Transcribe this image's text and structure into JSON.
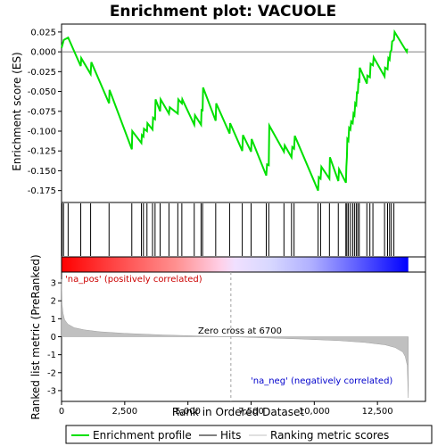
{
  "chart_data": {
    "type": "line",
    "title": "Enrichment plot: VACUOLE",
    "xlabel": "Rank in Ordered Dataset",
    "top_panel": {
      "ylabel": "Enrichment score (ES)",
      "ylim": [
        -0.19,
        0.035
      ],
      "yticks": [
        0.025,
        0.0,
        -0.025,
        -0.05,
        -0.075,
        -0.1,
        -0.125,
        -0.15,
        -0.175
      ],
      "ytick_labels": [
        "0.025",
        "0.000",
        "-0.025",
        "-0.050",
        "-0.075",
        "-0.100",
        "-0.125",
        "-0.150",
        "-0.175"
      ],
      "series": [
        {
          "name": "Enrichment profile",
          "color": "#00e000",
          "x": [
            0,
            90,
            260,
            760,
            780,
            1150,
            1180,
            1880,
            1900,
            2780,
            2800,
            3160,
            3180,
            3240,
            3260,
            3380,
            3400,
            3600,
            3620,
            3700,
            3720,
            3900,
            3920,
            4250,
            4280,
            4600,
            4620,
            4760,
            4780,
            5250,
            5280,
            5520,
            5540,
            5580,
            5600,
            6100,
            6120,
            6650,
            6670,
            7150,
            7180,
            7500,
            7520,
            8100,
            8130,
            8200,
            8220,
            8800,
            8830,
            9100,
            9130,
            9200,
            9230,
            10150,
            10180,
            10250,
            10280,
            10600,
            10620,
            10950,
            10980,
            11250,
            11270,
            11290,
            11310,
            11350,
            11380,
            11430,
            11460,
            11520,
            11550,
            11590,
            11620,
            11660,
            11690,
            11720,
            11750,
            11780,
            11800,
            12080,
            12100,
            12200,
            12230,
            12320,
            12350,
            12780,
            12800,
            12900,
            12930,
            12980,
            13010,
            13050,
            13080,
            13150,
            13180,
            13660,
            13680
          ],
          "y": [
            0.005,
            0.015,
            0.018,
            -0.018,
            -0.008,
            -0.028,
            -0.013,
            -0.065,
            -0.048,
            -0.123,
            -0.1,
            -0.115,
            -0.105,
            -0.107,
            -0.097,
            -0.1,
            -0.09,
            -0.098,
            -0.083,
            -0.085,
            -0.06,
            -0.075,
            -0.06,
            -0.078,
            -0.07,
            -0.078,
            -0.06,
            -0.065,
            -0.06,
            -0.092,
            -0.08,
            -0.092,
            -0.072,
            -0.075,
            -0.045,
            -0.087,
            -0.065,
            -0.103,
            -0.09,
            -0.125,
            -0.105,
            -0.126,
            -0.11,
            -0.156,
            -0.142,
            -0.143,
            -0.093,
            -0.126,
            -0.118,
            -0.133,
            -0.12,
            -0.122,
            -0.106,
            -0.175,
            -0.158,
            -0.16,
            -0.145,
            -0.16,
            -0.133,
            -0.163,
            -0.148,
            -0.165,
            -0.145,
            -0.133,
            -0.11,
            -0.112,
            -0.096,
            -0.098,
            -0.088,
            -0.09,
            -0.078,
            -0.08,
            -0.065,
            -0.067,
            -0.05,
            -0.053,
            -0.037,
            -0.039,
            -0.02,
            -0.04,
            -0.03,
            -0.032,
            -0.015,
            -0.017,
            -0.007,
            -0.031,
            -0.02,
            -0.022,
            -0.008,
            -0.01,
            0.0,
            0.002,
            0.013,
            0.015,
            0.025,
            0.0,
            0.004
          ]
        }
      ],
      "hits": [
        20,
        80,
        260,
        760,
        1150,
        1880,
        2780,
        3160,
        3240,
        3380,
        3600,
        3700,
        3900,
        4250,
        4600,
        4760,
        5250,
        5520,
        5580,
        6100,
        6650,
        7150,
        7500,
        8100,
        8200,
        8800,
        9100,
        9200,
        10150,
        10250,
        10600,
        10950,
        11250,
        11290,
        11350,
        11430,
        11520,
        11590,
        11660,
        11720,
        11780,
        12080,
        12200,
        12320,
        12780,
        12900,
        12980,
        13050,
        13150
      ]
    },
    "heat_strip": {
      "left_color": "#ff0000",
      "right_color": "#0000ff",
      "zero_cross": 6700
    },
    "bottom_panel": {
      "ylabel": "Ranked list metric (PreRanked)",
      "ylim": [
        -3.6,
        3.6
      ],
      "yticks": [
        3,
        2,
        1,
        0,
        -1,
        -2,
        -3
      ],
      "ytick_labels": [
        "3",
        "2",
        "1",
        "0",
        "-1",
        "-2",
        "-3"
      ],
      "series": [
        {
          "name": "Ranking metric scores",
          "color": "#c0c0c0",
          "x": [
            0,
            20,
            60,
            120,
            250,
            500,
            900,
            1500,
            2500,
            4000,
            5500,
            6700,
            8000,
            9500,
            11000,
            12000,
            12800,
            13200,
            13500,
            13600,
            13680,
            13720
          ],
          "y": [
            3.2,
            1.8,
            1.3,
            0.95,
            0.7,
            0.5,
            0.38,
            0.28,
            0.19,
            0.1,
            0.04,
            0.0,
            -0.06,
            -0.13,
            -0.22,
            -0.32,
            -0.45,
            -0.6,
            -0.85,
            -1.1,
            -1.6,
            -3.4
          ]
        }
      ],
      "annotations": {
        "pos_label": "'na_pos' (positively correlated)",
        "neg_label": "'na_neg' (negatively correlated)",
        "zero_label": "Zero cross at 6700"
      }
    },
    "xlim": [
      0,
      14400
    ],
    "xticks": [
      0,
      2500,
      5000,
      7500,
      10000,
      12500
    ],
    "xtick_labels": [
      "0",
      "2,500",
      "5,000",
      "7,500",
      "10,000",
      "12,500"
    ],
    "legend": {
      "placement": "bottom",
      "items": [
        {
          "label": "Enrichment profile",
          "color": "#00e000"
        },
        {
          "label": "Hits",
          "color": "#000000"
        },
        {
          "label": "Ranking metric scores",
          "color": "#c0c0c0"
        }
      ]
    }
  }
}
